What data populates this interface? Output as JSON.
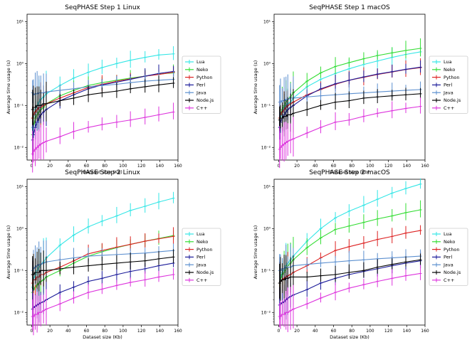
{
  "chart_data": [
    {
      "type": "line",
      "title": "SeqPHASE Step 1 Linux",
      "xlabel": "Dataset size (Kb)",
      "ylabel": "Average time usage (s)",
      "xlim": [
        -5,
        160
      ],
      "ylim": [
        0.005,
        15
      ],
      "yscale": "log",
      "xticks": [
        0,
        20,
        40,
        60,
        80,
        100,
        120,
        140,
        160
      ],
      "yticks": [
        0.01,
        0.1,
        1,
        10
      ],
      "yticklabels": [
        "10⁻²",
        "10⁻¹",
        "10⁰",
        "10¹"
      ],
      "x": [
        1,
        2,
        4,
        6,
        8,
        10,
        13,
        16,
        31,
        46,
        62,
        77,
        93,
        108,
        124,
        139,
        155
      ],
      "series": [
        {
          "name": "Lua",
          "color": "#33e6e6",
          "values": [
            0.03,
            0.05,
            0.08,
            0.1,
            0.12,
            0.14,
            0.16,
            0.19,
            0.3,
            0.45,
            0.62,
            0.8,
            1.0,
            1.2,
            1.4,
            1.6,
            1.7
          ]
        },
        {
          "name": "Neko",
          "color": "#33dd33",
          "values": [
            0.02,
            0.03,
            0.05,
            0.06,
            0.07,
            0.08,
            0.09,
            0.11,
            0.17,
            0.23,
            0.3,
            0.35,
            0.4,
            0.45,
            0.5,
            0.56,
            0.6
          ]
        },
        {
          "name": "Python",
          "color": "#dd2222",
          "values": [
            0.05,
            0.06,
            0.07,
            0.08,
            0.09,
            0.09,
            0.1,
            0.11,
            0.15,
            0.2,
            0.27,
            0.32,
            0.38,
            0.43,
            0.5,
            0.55,
            0.62
          ]
        },
        {
          "name": "Perl",
          "color": "#1a1a99",
          "values": [
            0.015,
            0.02,
            0.03,
            0.04,
            0.05,
            0.06,
            0.07,
            0.08,
            0.13,
            0.18,
            0.25,
            0.31,
            0.36,
            0.42,
            0.5,
            0.58,
            0.65
          ]
        },
        {
          "name": "Java",
          "color": "#5b8fcf",
          "values": [
            0.2,
            0.18,
            0.19,
            0.19,
            0.2,
            0.2,
            0.2,
            0.21,
            0.23,
            0.25,
            0.28,
            0.3,
            0.32,
            0.35,
            0.38,
            0.4,
            0.42
          ]
        },
        {
          "name": "Node.js",
          "color": "#000000",
          "values": [
            0.08,
            0.09,
            0.09,
            0.1,
            0.1,
            0.1,
            0.11,
            0.11,
            0.13,
            0.15,
            0.18,
            0.2,
            0.22,
            0.25,
            0.28,
            0.31,
            0.34
          ]
        },
        {
          "name": "C++",
          "color": "#dd33dd",
          "values": [
            0.007,
            0.008,
            0.009,
            0.01,
            0.011,
            0.012,
            0.013,
            0.014,
            0.018,
            0.024,
            0.03,
            0.035,
            0.04,
            0.045,
            0.052,
            0.06,
            0.07
          ]
        }
      ]
    },
    {
      "type": "line",
      "title": "SeqPHASE Step 1 macOS",
      "xlabel": "Dataset size (Kb)",
      "ylabel": "Average time usage (s)",
      "xlim": [
        -5,
        160
      ],
      "ylim": [
        0.005,
        15
      ],
      "yscale": "log",
      "xticks": [
        0,
        20,
        40,
        60,
        80,
        100,
        120,
        140,
        160
      ],
      "yticks": [
        0.01,
        0.1,
        1,
        10
      ],
      "yticklabels": [
        "10⁻²",
        "10⁻¹",
        "10⁰",
        "10¹"
      ],
      "x": [
        1,
        2,
        4,
        6,
        8,
        10,
        13,
        16,
        31,
        46,
        62,
        77,
        93,
        108,
        124,
        139,
        155
      ],
      "series": [
        {
          "name": "Lua",
          "color": "#33e6e6",
          "values": [
            0.03,
            0.05,
            0.07,
            0.09,
            0.1,
            0.11,
            0.12,
            0.15,
            0.28,
            0.42,
            0.58,
            0.75,
            0.95,
            1.15,
            1.4,
            1.65,
            1.9
          ]
        },
        {
          "name": "Neko",
          "color": "#33dd33",
          "values": [
            0.05,
            0.06,
            0.08,
            0.1,
            0.12,
            0.14,
            0.16,
            0.2,
            0.38,
            0.6,
            0.85,
            1.05,
            1.3,
            1.55,
            1.8,
            2.05,
            2.3
          ]
        },
        {
          "name": "Python",
          "color": "#dd2222",
          "values": [
            0.05,
            0.06,
            0.07,
            0.08,
            0.09,
            0.1,
            0.11,
            0.12,
            0.18,
            0.24,
            0.32,
            0.4,
            0.47,
            0.55,
            0.63,
            0.72,
            0.8
          ]
        },
        {
          "name": "Perl",
          "color": "#1a1a99",
          "values": [
            0.03,
            0.04,
            0.05,
            0.06,
            0.07,
            0.08,
            0.09,
            0.1,
            0.17,
            0.25,
            0.33,
            0.4,
            0.48,
            0.56,
            0.64,
            0.73,
            0.82
          ]
        },
        {
          "name": "Java",
          "color": "#5b8fcf",
          "values": [
            0.12,
            0.12,
            0.13,
            0.13,
            0.14,
            0.14,
            0.15,
            0.15,
            0.16,
            0.17,
            0.18,
            0.19,
            0.2,
            0.21,
            0.22,
            0.23,
            0.24
          ]
        },
        {
          "name": "Node.js",
          "color": "#000000",
          "values": [
            0.045,
            0.05,
            0.05,
            0.055,
            0.055,
            0.06,
            0.06,
            0.065,
            0.08,
            0.1,
            0.12,
            0.13,
            0.15,
            0.16,
            0.17,
            0.18,
            0.19
          ]
        },
        {
          "name": "C++",
          "color": "#dd33dd",
          "values": [
            0.009,
            0.01,
            0.011,
            0.012,
            0.013,
            0.014,
            0.015,
            0.016,
            0.022,
            0.03,
            0.04,
            0.045,
            0.055,
            0.065,
            0.075,
            0.085,
            0.095
          ]
        }
      ]
    },
    {
      "type": "line",
      "title": "SeqPHASE Step 2 Linux",
      "xlabel": "Dataset size (Kb)",
      "ylabel": "Average time usage (s)",
      "xlim": [
        -5,
        160
      ],
      "ylim": [
        0.005,
        15
      ],
      "yscale": "log",
      "xticks": [
        0,
        20,
        40,
        60,
        80,
        100,
        120,
        140,
        160
      ],
      "yticks": [
        0.01,
        0.1,
        1,
        10
      ],
      "yticklabels": [
        "10⁻²",
        "10⁻¹",
        "10⁰",
        "10¹"
      ],
      "x": [
        1,
        2,
        4,
        6,
        8,
        10,
        13,
        16,
        31,
        46,
        62,
        77,
        93,
        108,
        124,
        139,
        155
      ],
      "series": [
        {
          "name": "Lua",
          "color": "#33e6e6",
          "values": [
            0.04,
            0.06,
            0.08,
            0.1,
            0.12,
            0.14,
            0.16,
            0.2,
            0.4,
            0.7,
            1.1,
            1.5,
            2.0,
            2.7,
            3.4,
            4.3,
            5.3
          ]
        },
        {
          "name": "Neko",
          "color": "#33dd33",
          "values": [
            0.03,
            0.035,
            0.04,
            0.045,
            0.05,
            0.055,
            0.06,
            0.07,
            0.1,
            0.15,
            0.22,
            0.28,
            0.35,
            0.42,
            0.5,
            0.58,
            0.68
          ]
        },
        {
          "name": "Python",
          "color": "#dd2222",
          "values": [
            0.05,
            0.06,
            0.06,
            0.07,
            0.07,
            0.08,
            0.08,
            0.09,
            0.12,
            0.17,
            0.25,
            0.3,
            0.36,
            0.42,
            0.5,
            0.57,
            0.65
          ]
        },
        {
          "name": "Perl",
          "color": "#1a1a99",
          "values": [
            0.012,
            0.013,
            0.014,
            0.015,
            0.016,
            0.017,
            0.018,
            0.02,
            0.03,
            0.04,
            0.055,
            0.065,
            0.08,
            0.095,
            0.11,
            0.13,
            0.15
          ]
        },
        {
          "name": "Java",
          "color": "#5b8fcf",
          "values": [
            0.1,
            0.11,
            0.12,
            0.13,
            0.14,
            0.14,
            0.15,
            0.16,
            0.18,
            0.2,
            0.22,
            0.23,
            0.24,
            0.25,
            0.26,
            0.28,
            0.3
          ]
        },
        {
          "name": "Node.js",
          "color": "#000000",
          "values": [
            0.08,
            0.08,
            0.09,
            0.09,
            0.09,
            0.1,
            0.1,
            0.1,
            0.11,
            0.12,
            0.13,
            0.14,
            0.15,
            0.16,
            0.17,
            0.19,
            0.21
          ]
        },
        {
          "name": "C++",
          "color": "#dd33dd",
          "values": [
            0.008,
            0.008,
            0.009,
            0.009,
            0.01,
            0.01,
            0.011,
            0.012,
            0.016,
            0.022,
            0.03,
            0.036,
            0.044,
            0.052,
            0.06,
            0.07,
            0.08
          ]
        }
      ]
    },
    {
      "type": "line",
      "title": "SeqPHASE Step 2 macOS",
      "xlabel": "Dataset size (Kb)",
      "ylabel": "Average time usage (s)",
      "xlim": [
        -5,
        160
      ],
      "ylim": [
        0.005,
        15
      ],
      "yscale": "log",
      "xticks": [
        0,
        20,
        40,
        60,
        80,
        100,
        120,
        140,
        160
      ],
      "yticks": [
        0.01,
        0.1,
        1,
        10
      ],
      "yticklabels": [
        "10⁻²",
        "10⁻¹",
        "10⁰",
        "10¹"
      ],
      "x": [
        1,
        2,
        4,
        6,
        8,
        10,
        13,
        16,
        31,
        46,
        62,
        77,
        93,
        108,
        124,
        139,
        155
      ],
      "series": [
        {
          "name": "Lua",
          "color": "#33e6e6",
          "values": [
            0.05,
            0.07,
            0.09,
            0.11,
            0.13,
            0.15,
            0.18,
            0.22,
            0.5,
            1.0,
            1.8,
            2.6,
            3.6,
            5.0,
            7.0,
            9.0,
            11.5
          ]
        },
        {
          "name": "Neko",
          "color": "#33dd33",
          "values": [
            0.05,
            0.06,
            0.08,
            0.09,
            0.11,
            0.13,
            0.15,
            0.18,
            0.35,
            0.6,
            0.95,
            1.15,
            1.4,
            1.7,
            2.0,
            2.4,
            2.8
          ]
        },
        {
          "name": "Python",
          "color": "#dd2222",
          "values": [
            0.05,
            0.055,
            0.06,
            0.065,
            0.07,
            0.075,
            0.08,
            0.09,
            0.13,
            0.2,
            0.3,
            0.37,
            0.45,
            0.55,
            0.65,
            0.78,
            0.9
          ]
        },
        {
          "name": "Perl",
          "color": "#1a1a99",
          "values": [
            0.015,
            0.016,
            0.017,
            0.018,
            0.02,
            0.022,
            0.024,
            0.026,
            0.035,
            0.05,
            0.065,
            0.08,
            0.095,
            0.11,
            0.13,
            0.15,
            0.17
          ]
        },
        {
          "name": "Java",
          "color": "#5b8fcf",
          "values": [
            0.1,
            0.1,
            0.11,
            0.11,
            0.12,
            0.12,
            0.12,
            0.13,
            0.14,
            0.15,
            0.16,
            0.17,
            0.18,
            0.19,
            0.2,
            0.21,
            0.22
          ]
        },
        {
          "name": "Node.js",
          "color": "#000000",
          "values": [
            0.05,
            0.055,
            0.06,
            0.06,
            0.065,
            0.065,
            0.07,
            0.07,
            0.07,
            0.075,
            0.08,
            0.09,
            0.1,
            0.12,
            0.14,
            0.16,
            0.18
          ]
        },
        {
          "name": "C++",
          "color": "#dd33dd",
          "values": [
            0.008,
            0.008,
            0.009,
            0.009,
            0.01,
            0.01,
            0.011,
            0.012,
            0.016,
            0.022,
            0.03,
            0.038,
            0.046,
            0.055,
            0.065,
            0.075,
            0.085
          ]
        }
      ]
    }
  ]
}
